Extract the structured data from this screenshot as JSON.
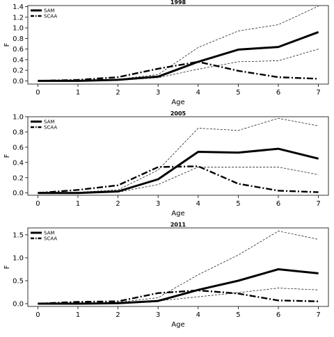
{
  "chart_data": [
    {
      "type": "line",
      "title": "1998",
      "xlabel": "Age",
      "ylabel": "F",
      "x": [
        0,
        1,
        2,
        3,
        4,
        5,
        6,
        7
      ],
      "xlim": [
        -0.25,
        7.25
      ],
      "ylim": [
        -0.06,
        1.42
      ],
      "yticks": [
        0.0,
        0.2,
        0.4,
        0.6,
        0.8,
        1.0,
        1.2,
        1.4
      ],
      "ytick_labels": [
        "0.0",
        "0.2",
        "0.4",
        "0.6",
        "0.8",
        "1.0",
        "1.2",
        "1.4"
      ],
      "xtick_labels": [
        "0",
        "1",
        "2",
        "3",
        "4",
        "5",
        "6",
        "7"
      ],
      "legend_position": "top-left",
      "series": [
        {
          "name": "SAM",
          "style": "solid",
          "values": [
            0.0,
            0.0,
            0.02,
            0.08,
            0.36,
            0.59,
            0.64,
            0.92
          ]
        },
        {
          "name": "SCAA",
          "style": "dashdot",
          "values": [
            0.0,
            0.02,
            0.07,
            0.23,
            0.36,
            0.19,
            0.07,
            0.04
          ]
        },
        {
          "style": "dashed-thin",
          "values": [
            0.0,
            0.01,
            0.03,
            0.12,
            0.63,
            0.94,
            1.06,
            1.41
          ]
        },
        {
          "style": "dashed-thin",
          "values": [
            0.0,
            0.0,
            0.01,
            0.06,
            0.22,
            0.36,
            0.38,
            0.6
          ]
        }
      ]
    },
    {
      "type": "line",
      "title": "2005",
      "xlabel": "Age",
      "ylabel": "F",
      "x": [
        0,
        1,
        2,
        3,
        4,
        5,
        6,
        7
      ],
      "xlim": [
        -0.25,
        7.25
      ],
      "ylim": [
        -0.03,
        1.0
      ],
      "yticks": [
        0.0,
        0.2,
        0.4,
        0.6,
        0.8,
        1.0
      ],
      "ytick_labels": [
        "0.0",
        "0.2",
        "0.4",
        "0.6",
        "0.8",
        "1.0"
      ],
      "xtick_labels": [
        "0",
        "1",
        "2",
        "3",
        "4",
        "5",
        "6",
        "7"
      ],
      "legend_position": "top-left",
      "series": [
        {
          "name": "SAM",
          "style": "solid",
          "values": [
            0.0,
            0.0,
            0.02,
            0.18,
            0.54,
            0.53,
            0.58,
            0.45
          ]
        },
        {
          "name": "SCAA",
          "style": "dashdot",
          "values": [
            0.0,
            0.04,
            0.1,
            0.34,
            0.35,
            0.12,
            0.03,
            0.01
          ]
        },
        {
          "style": "dashed-thin",
          "values": [
            0.0,
            0.01,
            0.04,
            0.3,
            0.85,
            0.82,
            0.98,
            0.88
          ]
        },
        {
          "style": "dashed-thin",
          "values": [
            0.0,
            0.0,
            0.01,
            0.11,
            0.34,
            0.34,
            0.34,
            0.24
          ]
        }
      ]
    },
    {
      "type": "line",
      "title": "2011",
      "xlabel": "Age",
      "ylabel": "F",
      "x": [
        0,
        1,
        2,
        3,
        4,
        5,
        6,
        7
      ],
      "xlim": [
        -0.25,
        7.25
      ],
      "ylim": [
        -0.06,
        1.65
      ],
      "yticks": [
        0.0,
        0.5,
        1.0,
        1.5
      ],
      "ytick_labels": [
        "0.0",
        "0.5",
        "1.0",
        "1.5"
      ],
      "xtick_labels": [
        "0",
        "1",
        "2",
        "3",
        "4",
        "5",
        "6",
        "7"
      ],
      "legend_position": "top-left",
      "series": [
        {
          "name": "SAM",
          "style": "solid",
          "values": [
            0.0,
            0.0,
            0.01,
            0.06,
            0.3,
            0.5,
            0.75,
            0.66
          ]
        },
        {
          "name": "SCAA",
          "style": "dashdot",
          "values": [
            0.0,
            0.04,
            0.05,
            0.23,
            0.29,
            0.22,
            0.07,
            0.05
          ]
        },
        {
          "style": "dashed-thin",
          "values": [
            0.0,
            0.01,
            0.03,
            0.13,
            0.63,
            1.06,
            1.58,
            1.4
          ]
        },
        {
          "style": "dashed-thin",
          "values": [
            0.0,
            0.0,
            0.01,
            0.06,
            0.15,
            0.24,
            0.34,
            0.3
          ]
        }
      ]
    }
  ]
}
